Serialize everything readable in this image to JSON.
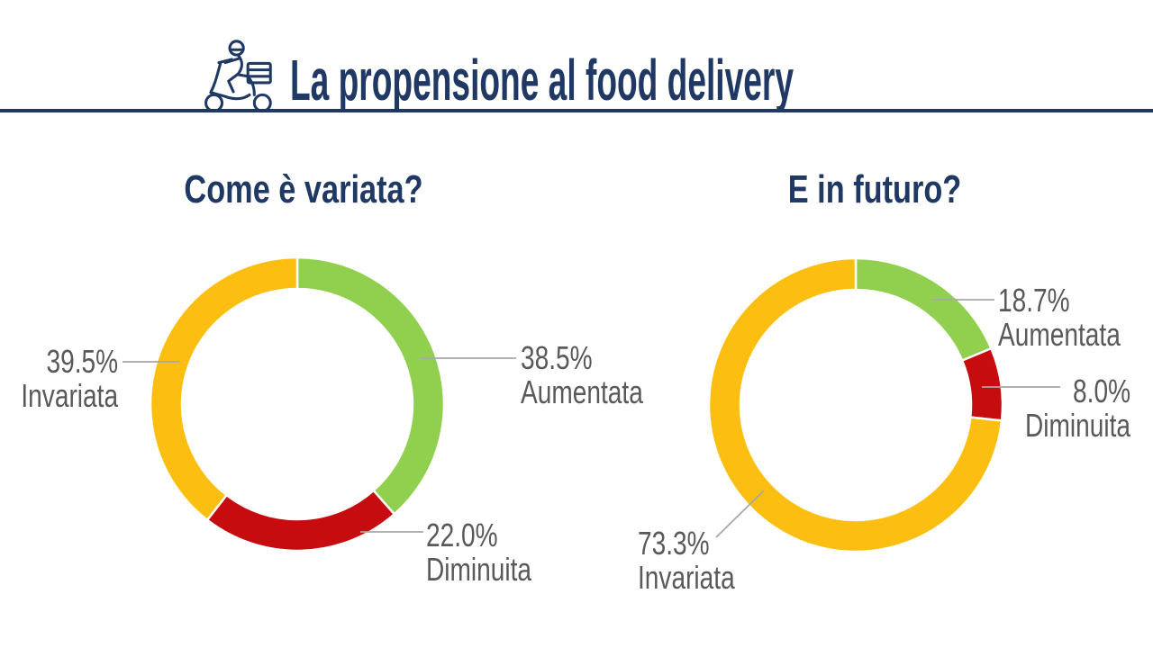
{
  "header": {
    "title": "La propensione al food delivery",
    "icon": "delivery-scooter-icon"
  },
  "style": {
    "title_navy": "#1f3864",
    "divider_color": "#1f3864",
    "label_gray": "#595959",
    "leader_line_gray": "#a8a8a8",
    "background": "#ffffff"
  },
  "chart_data": [
    {
      "type": "pie",
      "variant": "donut",
      "title": "Come è variata?",
      "start_angle": "top",
      "direction": "clockwise",
      "legend_position": "callout-labels",
      "segments": [
        {
          "label": "Aumentata",
          "value": 38.5,
          "display": "38.5%",
          "color": "#90d04e"
        },
        {
          "label": "Diminuita",
          "value": 22.0,
          "display": "22.0%",
          "color": "#c70c0f"
        },
        {
          "label": "Invariata",
          "value": 39.5,
          "display": "39.5%",
          "color": "#fcbe10"
        }
      ]
    },
    {
      "type": "pie",
      "variant": "donut",
      "title": "E in futuro?",
      "start_angle": "top",
      "direction": "clockwise",
      "legend_position": "callout-labels",
      "segments": [
        {
          "label": "Aumentata",
          "value": 18.7,
          "display": "18.7%",
          "color": "#90d04e"
        },
        {
          "label": "Diminuita",
          "value": 8.0,
          "display": "8.0%",
          "color": "#c70c0f"
        },
        {
          "label": "Invariata",
          "value": 73.3,
          "display": "73.3%",
          "color": "#fcbe10"
        }
      ]
    }
  ]
}
